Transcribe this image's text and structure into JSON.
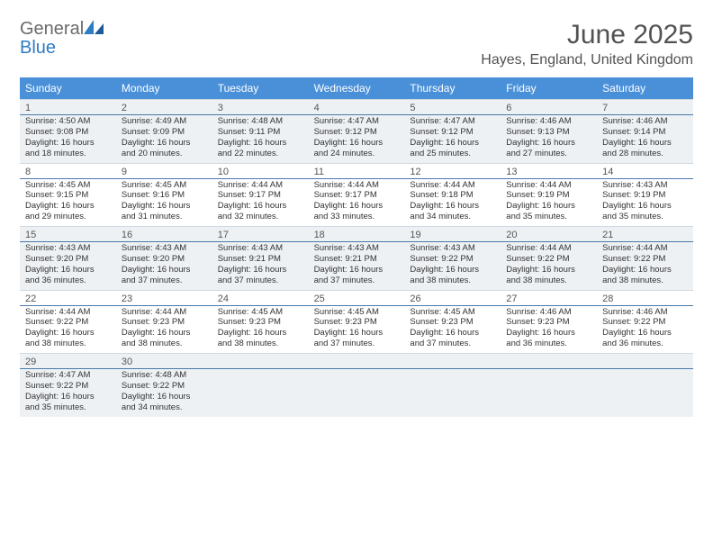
{
  "brand": {
    "text1": "General",
    "text2": "Blue",
    "color1": "#6a6a6a",
    "color2": "#2e7cc4"
  },
  "title": "June 2025",
  "location": "Hayes, England, United Kingdom",
  "colors": {
    "header_bg": "#4a90d9",
    "header_text": "#ffffff",
    "alt_row_bg": "#eef1f4",
    "divider": "#4a7aa8",
    "text": "#333333",
    "title_text": "#525252"
  },
  "weekdays": [
    "Sunday",
    "Monday",
    "Tuesday",
    "Wednesday",
    "Thursday",
    "Friday",
    "Saturday"
  ],
  "weeks": [
    {
      "alt": true,
      "days": [
        {
          "num": "1",
          "sunrise": "4:50 AM",
          "sunset": "9:08 PM",
          "daylight_h": "16",
          "daylight_m": "18"
        },
        {
          "num": "2",
          "sunrise": "4:49 AM",
          "sunset": "9:09 PM",
          "daylight_h": "16",
          "daylight_m": "20"
        },
        {
          "num": "3",
          "sunrise": "4:48 AM",
          "sunset": "9:11 PM",
          "daylight_h": "16",
          "daylight_m": "22"
        },
        {
          "num": "4",
          "sunrise": "4:47 AM",
          "sunset": "9:12 PM",
          "daylight_h": "16",
          "daylight_m": "24"
        },
        {
          "num": "5",
          "sunrise": "4:47 AM",
          "sunset": "9:12 PM",
          "daylight_h": "16",
          "daylight_m": "25"
        },
        {
          "num": "6",
          "sunrise": "4:46 AM",
          "sunset": "9:13 PM",
          "daylight_h": "16",
          "daylight_m": "27"
        },
        {
          "num": "7",
          "sunrise": "4:46 AM",
          "sunset": "9:14 PM",
          "daylight_h": "16",
          "daylight_m": "28"
        }
      ]
    },
    {
      "alt": false,
      "days": [
        {
          "num": "8",
          "sunrise": "4:45 AM",
          "sunset": "9:15 PM",
          "daylight_h": "16",
          "daylight_m": "29"
        },
        {
          "num": "9",
          "sunrise": "4:45 AM",
          "sunset": "9:16 PM",
          "daylight_h": "16",
          "daylight_m": "31"
        },
        {
          "num": "10",
          "sunrise": "4:44 AM",
          "sunset": "9:17 PM",
          "daylight_h": "16",
          "daylight_m": "32"
        },
        {
          "num": "11",
          "sunrise": "4:44 AM",
          "sunset": "9:17 PM",
          "daylight_h": "16",
          "daylight_m": "33"
        },
        {
          "num": "12",
          "sunrise": "4:44 AM",
          "sunset": "9:18 PM",
          "daylight_h": "16",
          "daylight_m": "34"
        },
        {
          "num": "13",
          "sunrise": "4:44 AM",
          "sunset": "9:19 PM",
          "daylight_h": "16",
          "daylight_m": "35"
        },
        {
          "num": "14",
          "sunrise": "4:43 AM",
          "sunset": "9:19 PM",
          "daylight_h": "16",
          "daylight_m": "35"
        }
      ]
    },
    {
      "alt": true,
      "days": [
        {
          "num": "15",
          "sunrise": "4:43 AM",
          "sunset": "9:20 PM",
          "daylight_h": "16",
          "daylight_m": "36"
        },
        {
          "num": "16",
          "sunrise": "4:43 AM",
          "sunset": "9:20 PM",
          "daylight_h": "16",
          "daylight_m": "37"
        },
        {
          "num": "17",
          "sunrise": "4:43 AM",
          "sunset": "9:21 PM",
          "daylight_h": "16",
          "daylight_m": "37"
        },
        {
          "num": "18",
          "sunrise": "4:43 AM",
          "sunset": "9:21 PM",
          "daylight_h": "16",
          "daylight_m": "37"
        },
        {
          "num": "19",
          "sunrise": "4:43 AM",
          "sunset": "9:22 PM",
          "daylight_h": "16",
          "daylight_m": "38"
        },
        {
          "num": "20",
          "sunrise": "4:44 AM",
          "sunset": "9:22 PM",
          "daylight_h": "16",
          "daylight_m": "38"
        },
        {
          "num": "21",
          "sunrise": "4:44 AM",
          "sunset": "9:22 PM",
          "daylight_h": "16",
          "daylight_m": "38"
        }
      ]
    },
    {
      "alt": false,
      "days": [
        {
          "num": "22",
          "sunrise": "4:44 AM",
          "sunset": "9:22 PM",
          "daylight_h": "16",
          "daylight_m": "38"
        },
        {
          "num": "23",
          "sunrise": "4:44 AM",
          "sunset": "9:23 PM",
          "daylight_h": "16",
          "daylight_m": "38"
        },
        {
          "num": "24",
          "sunrise": "4:45 AM",
          "sunset": "9:23 PM",
          "daylight_h": "16",
          "daylight_m": "38"
        },
        {
          "num": "25",
          "sunrise": "4:45 AM",
          "sunset": "9:23 PM",
          "daylight_h": "16",
          "daylight_m": "37"
        },
        {
          "num": "26",
          "sunrise": "4:45 AM",
          "sunset": "9:23 PM",
          "daylight_h": "16",
          "daylight_m": "37"
        },
        {
          "num": "27",
          "sunrise": "4:46 AM",
          "sunset": "9:23 PM",
          "daylight_h": "16",
          "daylight_m": "36"
        },
        {
          "num": "28",
          "sunrise": "4:46 AM",
          "sunset": "9:22 PM",
          "daylight_h": "16",
          "daylight_m": "36"
        }
      ]
    },
    {
      "alt": true,
      "days": [
        {
          "num": "29",
          "sunrise": "4:47 AM",
          "sunset": "9:22 PM",
          "daylight_h": "16",
          "daylight_m": "35"
        },
        {
          "num": "30",
          "sunrise": "4:48 AM",
          "sunset": "9:22 PM",
          "daylight_h": "16",
          "daylight_m": "34"
        }
      ]
    }
  ],
  "labels": {
    "sunrise": "Sunrise:",
    "sunset": "Sunset:",
    "daylight_prefix": "Daylight:",
    "hours_word": "hours",
    "and_word": "and",
    "minutes_word": "minutes."
  }
}
